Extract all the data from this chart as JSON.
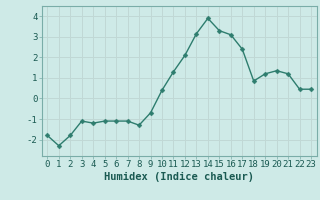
{
  "x": [
    0,
    1,
    2,
    3,
    4,
    5,
    6,
    7,
    8,
    9,
    10,
    11,
    12,
    13,
    14,
    15,
    16,
    17,
    18,
    19,
    20,
    21,
    22,
    23
  ],
  "y": [
    -1.8,
    -2.3,
    -1.8,
    -1.1,
    -1.2,
    -1.1,
    -1.1,
    -1.1,
    -1.3,
    -0.7,
    0.4,
    1.3,
    2.1,
    3.15,
    3.9,
    3.3,
    3.1,
    2.4,
    0.85,
    1.2,
    1.35,
    1.2,
    0.45,
    0.45
  ],
  "line_color": "#2e7d6e",
  "marker_color": "#2e7d6e",
  "bg_color": "#ceeae7",
  "grid_color": "#c0d8d5",
  "xlabel": "Humidex (Indice chaleur)",
  "xlim": [
    -0.5,
    23.5
  ],
  "ylim": [
    -2.8,
    4.5
  ],
  "yticks": [
    -2,
    -1,
    0,
    1,
    2,
    3,
    4
  ],
  "xticks": [
    0,
    1,
    2,
    3,
    4,
    5,
    6,
    7,
    8,
    9,
    10,
    11,
    12,
    13,
    14,
    15,
    16,
    17,
    18,
    19,
    20,
    21,
    22,
    23
  ],
  "xlabel_fontsize": 7.5,
  "tick_fontsize": 6.5,
  "line_width": 1.0,
  "marker_size": 2.5
}
